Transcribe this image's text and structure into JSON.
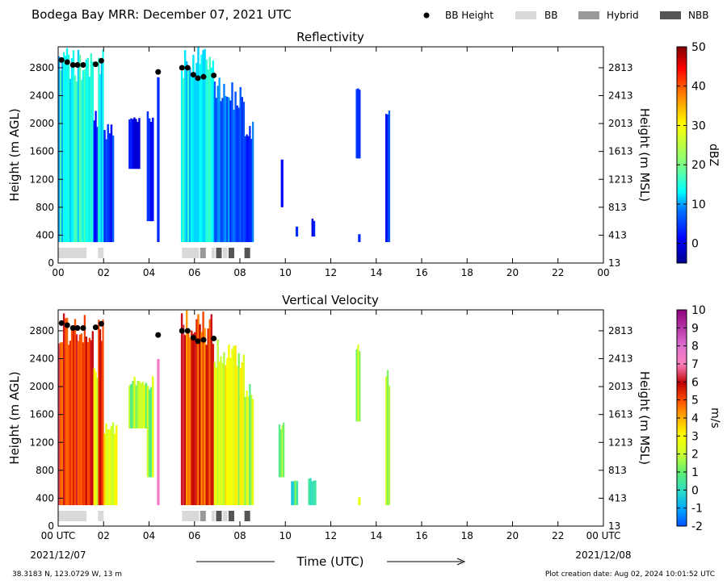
{
  "header": {
    "title": "Bodega Bay MRR:  December 07, 2021 UTC",
    "legend": [
      {
        "label": "BB Height",
        "kind": "dot",
        "color": "#000000"
      },
      {
        "label": "BB",
        "kind": "box",
        "color": "#d9d9d9"
      },
      {
        "label": "Hybrid",
        "kind": "box",
        "color": "#999999"
      },
      {
        "label": "NBB",
        "kind": "box",
        "color": "#555555"
      }
    ]
  },
  "footer": {
    "location": "38.3183 N, 123.0729 W, 13 m",
    "created": "Plot creation date: Aug 02, 2024 10:01:52 UTC",
    "xlabel": "Time (UTC)",
    "date_start": "2021/12/07",
    "date_end": "2021/12/08"
  },
  "chart_data": [
    {
      "type": "heatmap",
      "title": "Reflectivity",
      "ylabel": "Height (m AGL)",
      "y2label": "Height (m MSL)",
      "x_ticks": [
        "00",
        "02",
        "04",
        "06",
        "08",
        "10",
        "12",
        "14",
        "16",
        "18",
        "20",
        "22",
        "00"
      ],
      "y_ticks": [
        0,
        400,
        800,
        1200,
        1600,
        2000,
        2400,
        2800
      ],
      "y2_ticks": [
        "13",
        "413",
        "813",
        "1213",
        "1613",
        "2013",
        "2413",
        "2813"
      ],
      "xlim": [
        0,
        24
      ],
      "ylim": [
        0,
        3100
      ],
      "colorbar": {
        "label": "dBZ",
        "ticks": [
          0,
          10,
          20,
          30,
          40,
          50
        ],
        "range": [
          -5,
          50
        ]
      },
      "echo_periods": [
        {
          "x": [
            0.0,
            1.55
          ],
          "top": 3100,
          "bottom": 300,
          "level": 14
        },
        {
          "x": [
            1.55,
            1.75
          ],
          "top": 2300,
          "bottom": 300,
          "level": 5
        },
        {
          "x": [
            1.75,
            2.0
          ],
          "top": 3100,
          "bottom": 300,
          "level": 12
        },
        {
          "x": [
            2.0,
            2.45
          ],
          "top": 2000,
          "bottom": 300,
          "level": 3
        },
        {
          "x": [
            3.1,
            3.6
          ],
          "top": 2100,
          "bottom": 1350,
          "level": 1
        },
        {
          "x": [
            3.9,
            4.2
          ],
          "top": 2200,
          "bottom": 600,
          "level": 2
        },
        {
          "x": [
            4.35,
            4.45
          ],
          "top": 2800,
          "bottom": 300,
          "level": 4
        },
        {
          "x": [
            5.4,
            6.85
          ],
          "top": 3100,
          "bottom": 300,
          "level": 13
        },
        {
          "x": [
            6.85,
            7.4
          ],
          "top": 2700,
          "bottom": 300,
          "level": 9
        },
        {
          "x": [
            7.4,
            8.2
          ],
          "top": 2600,
          "bottom": 300,
          "level": 7
        },
        {
          "x": [
            8.2,
            8.6
          ],
          "top": 2100,
          "bottom": 300,
          "level": 5
        },
        {
          "x": [
            9.8,
            9.9
          ],
          "top": 1500,
          "bottom": 800,
          "level": 0
        },
        {
          "x": [
            10.45,
            10.55
          ],
          "top": 550,
          "bottom": 380,
          "level": 0
        },
        {
          "x": [
            11.15,
            11.3
          ],
          "top": 650,
          "bottom": 380,
          "level": 2
        },
        {
          "x": [
            13.1,
            13.3
          ],
          "top": 2600,
          "bottom": 1500,
          "level": 5
        },
        {
          "x": [
            13.2,
            13.3
          ],
          "top": 420,
          "bottom": 300,
          "level": 2
        },
        {
          "x": [
            14.4,
            14.6
          ],
          "top": 2300,
          "bottom": 300,
          "level": 3
        }
      ],
      "bb_height_points": [
        {
          "t": 0.15,
          "h": 2910
        },
        {
          "t": 0.4,
          "h": 2880
        },
        {
          "t": 0.65,
          "h": 2840
        },
        {
          "t": 0.85,
          "h": 2840
        },
        {
          "t": 1.1,
          "h": 2840
        },
        {
          "t": 1.65,
          "h": 2850
        },
        {
          "t": 1.9,
          "h": 2900
        },
        {
          "t": 4.4,
          "h": 2740
        },
        {
          "t": 5.45,
          "h": 2800
        },
        {
          "t": 5.7,
          "h": 2800
        },
        {
          "t": 5.95,
          "h": 2700
        },
        {
          "t": 6.15,
          "h": 2650
        },
        {
          "t": 6.4,
          "h": 2670
        },
        {
          "t": 6.85,
          "h": 2690
        }
      ],
      "bb_type_segments": [
        {
          "x": [
            0.0,
            1.25
          ],
          "type": "BB"
        },
        {
          "x": [
            1.75,
            2.0
          ],
          "type": "BB"
        },
        {
          "x": [
            5.45,
            6.2
          ],
          "type": "BB"
        },
        {
          "x": [
            6.25,
            6.5
          ],
          "type": "Hybrid"
        },
        {
          "x": [
            6.75,
            6.9
          ],
          "type": "BB"
        },
        {
          "x": [
            6.95,
            7.2
          ],
          "type": "NBB"
        },
        {
          "x": [
            7.25,
            7.45
          ],
          "type": "BB"
        },
        {
          "x": [
            7.5,
            7.75
          ],
          "type": "NBB"
        },
        {
          "x": [
            8.2,
            8.45
          ],
          "type": "NBB"
        }
      ]
    },
    {
      "type": "heatmap",
      "title": "Vertical Velocity",
      "ylabel": "Height (m AGL)",
      "y2label": "Height (m MSL)",
      "x_ticks": [
        "00 UTC",
        "02",
        "04",
        "06",
        "08",
        "10",
        "12",
        "14",
        "16",
        "18",
        "20",
        "22",
        "00 UTC"
      ],
      "y_ticks": [
        0,
        400,
        800,
        1200,
        1600,
        2000,
        2400,
        2800
      ],
      "y2_ticks": [
        "13",
        "413",
        "813",
        "1213",
        "1613",
        "2013",
        "2413",
        "2813"
      ],
      "xlim": [
        0,
        24
      ],
      "ylim": [
        0,
        3100
      ],
      "colorbar": {
        "label": "m/s",
        "ticks": [
          -2,
          -1,
          0,
          1,
          2,
          3,
          4,
          5,
          6,
          7,
          8,
          9,
          10
        ],
        "range": [
          -2,
          10
        ]
      },
      "echo_periods": [
        {
          "x": [
            0.0,
            1.55
          ],
          "top": 3100,
          "bottom": 300,
          "level": 5.5
        },
        {
          "x": [
            1.55,
            1.75
          ],
          "top": 2300,
          "bottom": 300,
          "level": 2.5
        },
        {
          "x": [
            1.75,
            2.0
          ],
          "top": 3100,
          "bottom": 300,
          "level": 5.5
        },
        {
          "x": [
            2.0,
            2.6
          ],
          "top": 1500,
          "bottom": 300,
          "level": 2.5
        },
        {
          "x": [
            3.1,
            3.9
          ],
          "top": 2150,
          "bottom": 1400,
          "level": 1.5
        },
        {
          "x": [
            3.9,
            4.2
          ],
          "top": 2200,
          "bottom": 700,
          "level": 1.8
        },
        {
          "x": [
            4.35,
            4.45
          ],
          "top": 2800,
          "bottom": 300,
          "level": 6.5
        },
        {
          "x": [
            5.4,
            6.85
          ],
          "top": 3100,
          "bottom": 300,
          "level": 5.3
        },
        {
          "x": [
            6.85,
            7.4
          ],
          "top": 2700,
          "bottom": 300,
          "level": 2.8
        },
        {
          "x": [
            7.4,
            8.2
          ],
          "top": 2600,
          "bottom": 300,
          "level": 2.3
        },
        {
          "x": [
            8.2,
            8.6
          ],
          "top": 2100,
          "bottom": 300,
          "level": 1.6
        },
        {
          "x": [
            9.7,
            9.95
          ],
          "top": 1500,
          "bottom": 700,
          "level": 0.8
        },
        {
          "x": [
            10.25,
            10.55
          ],
          "top": 700,
          "bottom": 300,
          "level": 0.3
        },
        {
          "x": [
            11.0,
            11.35
          ],
          "top": 700,
          "bottom": 300,
          "level": 0.4
        },
        {
          "x": [
            13.1,
            13.3
          ],
          "top": 2600,
          "bottom": 1500,
          "level": 1.6
        },
        {
          "x": [
            13.2,
            13.3
          ],
          "top": 420,
          "bottom": 300,
          "level": 2.5
        },
        {
          "x": [
            14.4,
            14.6
          ],
          "top": 2300,
          "bottom": 300,
          "level": 1.5
        }
      ],
      "bb_height_points": [
        {
          "t": 0.15,
          "h": 2910
        },
        {
          "t": 0.4,
          "h": 2880
        },
        {
          "t": 0.65,
          "h": 2840
        },
        {
          "t": 0.85,
          "h": 2840
        },
        {
          "t": 1.1,
          "h": 2840
        },
        {
          "t": 1.65,
          "h": 2850
        },
        {
          "t": 1.9,
          "h": 2900
        },
        {
          "t": 4.4,
          "h": 2740
        },
        {
          "t": 5.45,
          "h": 2800
        },
        {
          "t": 5.7,
          "h": 2800
        },
        {
          "t": 5.95,
          "h": 2700
        },
        {
          "t": 6.15,
          "h": 2650
        },
        {
          "t": 6.4,
          "h": 2670
        },
        {
          "t": 6.85,
          "h": 2690
        }
      ],
      "bb_type_segments": [
        {
          "x": [
            0.0,
            1.25
          ],
          "type": "BB"
        },
        {
          "x": [
            1.75,
            2.0
          ],
          "type": "BB"
        },
        {
          "x": [
            5.45,
            6.2
          ],
          "type": "BB"
        },
        {
          "x": [
            6.25,
            6.5
          ],
          "type": "Hybrid"
        },
        {
          "x": [
            6.75,
            6.9
          ],
          "type": "BB"
        },
        {
          "x": [
            6.95,
            7.2
          ],
          "type": "NBB"
        },
        {
          "x": [
            7.25,
            7.45
          ],
          "type": "BB"
        },
        {
          "x": [
            7.5,
            7.75
          ],
          "type": "NBB"
        },
        {
          "x": [
            8.2,
            8.45
          ],
          "type": "NBB"
        }
      ]
    }
  ]
}
